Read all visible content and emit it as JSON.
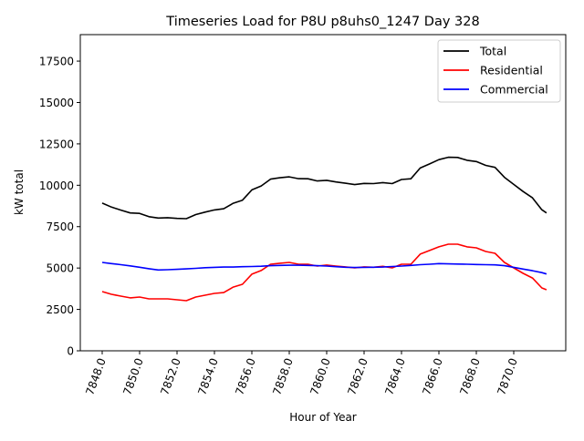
{
  "chart_data": {
    "type": "line",
    "title": "Timeseries Load for P8U p8uhs0_1247  Day 328",
    "xlabel": "Hour of Year",
    "ylabel": "kW total",
    "xlim": [
      7846.83,
      7872.78
    ],
    "ylim": [
      0,
      19100
    ],
    "xticks": [
      7848,
      7850,
      7852,
      7854,
      7856,
      7858,
      7860,
      7862,
      7864,
      7866,
      7868,
      7870
    ],
    "xtick_labels": [
      "7848.0",
      "7850.0",
      "7852.0",
      "7854.0",
      "7856.0",
      "7858.0",
      "7860.0",
      "7862.0",
      "7864.0",
      "7866.0",
      "7868.0",
      "7870.0"
    ],
    "yticks": [
      0,
      2500,
      5000,
      7500,
      10000,
      12500,
      15000,
      17500
    ],
    "ytick_labels": [
      "0",
      "2500",
      "5000",
      "7500",
      "10000",
      "12500",
      "15000",
      "17500"
    ],
    "grid": false,
    "legend_position": "top-right",
    "x": [
      7848,
      7848.5,
      7849,
      7849.5,
      7850,
      7850.5,
      7851,
      7851.5,
      7852,
      7852.5,
      7853,
      7853.5,
      7854,
      7854.5,
      7855,
      7855.5,
      7856,
      7856.5,
      7857,
      7857.5,
      7858,
      7858.5,
      7859,
      7859.5,
      7860,
      7860.5,
      7861,
      7861.5,
      7862,
      7862.5,
      7863,
      7863.5,
      7864,
      7864.5,
      7865,
      7865.5,
      7866,
      7866.5,
      7867,
      7867.5,
      7868,
      7868.5,
      7869,
      7869.5,
      7870,
      7870.5,
      7871,
      7871.5,
      7871.75
    ],
    "series": [
      {
        "name": "Total",
        "color": "#000000",
        "values": [
          8920,
          8680,
          8500,
          8330,
          8300,
          8100,
          8020,
          8040,
          8000,
          7980,
          8230,
          8380,
          8510,
          8580,
          8910,
          9100,
          9720,
          9960,
          10370,
          10450,
          10510,
          10400,
          10390,
          10260,
          10300,
          10200,
          10120,
          10040,
          10110,
          10100,
          10160,
          10100,
          10350,
          10390,
          11040,
          11290,
          11550,
          11690,
          11680,
          11510,
          11430,
          11200,
          11080,
          10480,
          10050,
          9620,
          9240,
          8520,
          8330
        ]
      },
      {
        "name": "Residential",
        "color": "#ff0000",
        "values": [
          3580,
          3410,
          3300,
          3200,
          3250,
          3140,
          3140,
          3140,
          3080,
          3030,
          3250,
          3360,
          3470,
          3520,
          3850,
          4020,
          4630,
          4850,
          5230,
          5290,
          5340,
          5230,
          5230,
          5120,
          5180,
          5120,
          5070,
          5010,
          5070,
          5050,
          5100,
          5010,
          5230,
          5230,
          5840,
          6060,
          6280,
          6440,
          6440,
          6280,
          6220,
          6000,
          5890,
          5340,
          5010,
          4680,
          4400,
          3800,
          3690
        ]
      },
      {
        "name": "Commercial",
        "color": "#0000ff",
        "values": [
          5340,
          5270,
          5200,
          5130,
          5050,
          4960,
          4880,
          4900,
          4920,
          4950,
          4980,
          5020,
          5040,
          5060,
          5060,
          5080,
          5090,
          5110,
          5140,
          5160,
          5170,
          5170,
          5160,
          5140,
          5120,
          5080,
          5050,
          5030,
          5040,
          5050,
          5060,
          5090,
          5120,
          5160,
          5200,
          5230,
          5270,
          5250,
          5240,
          5230,
          5210,
          5200,
          5190,
          5140,
          5040,
          4940,
          4840,
          4720,
          4640
        ]
      }
    ]
  }
}
